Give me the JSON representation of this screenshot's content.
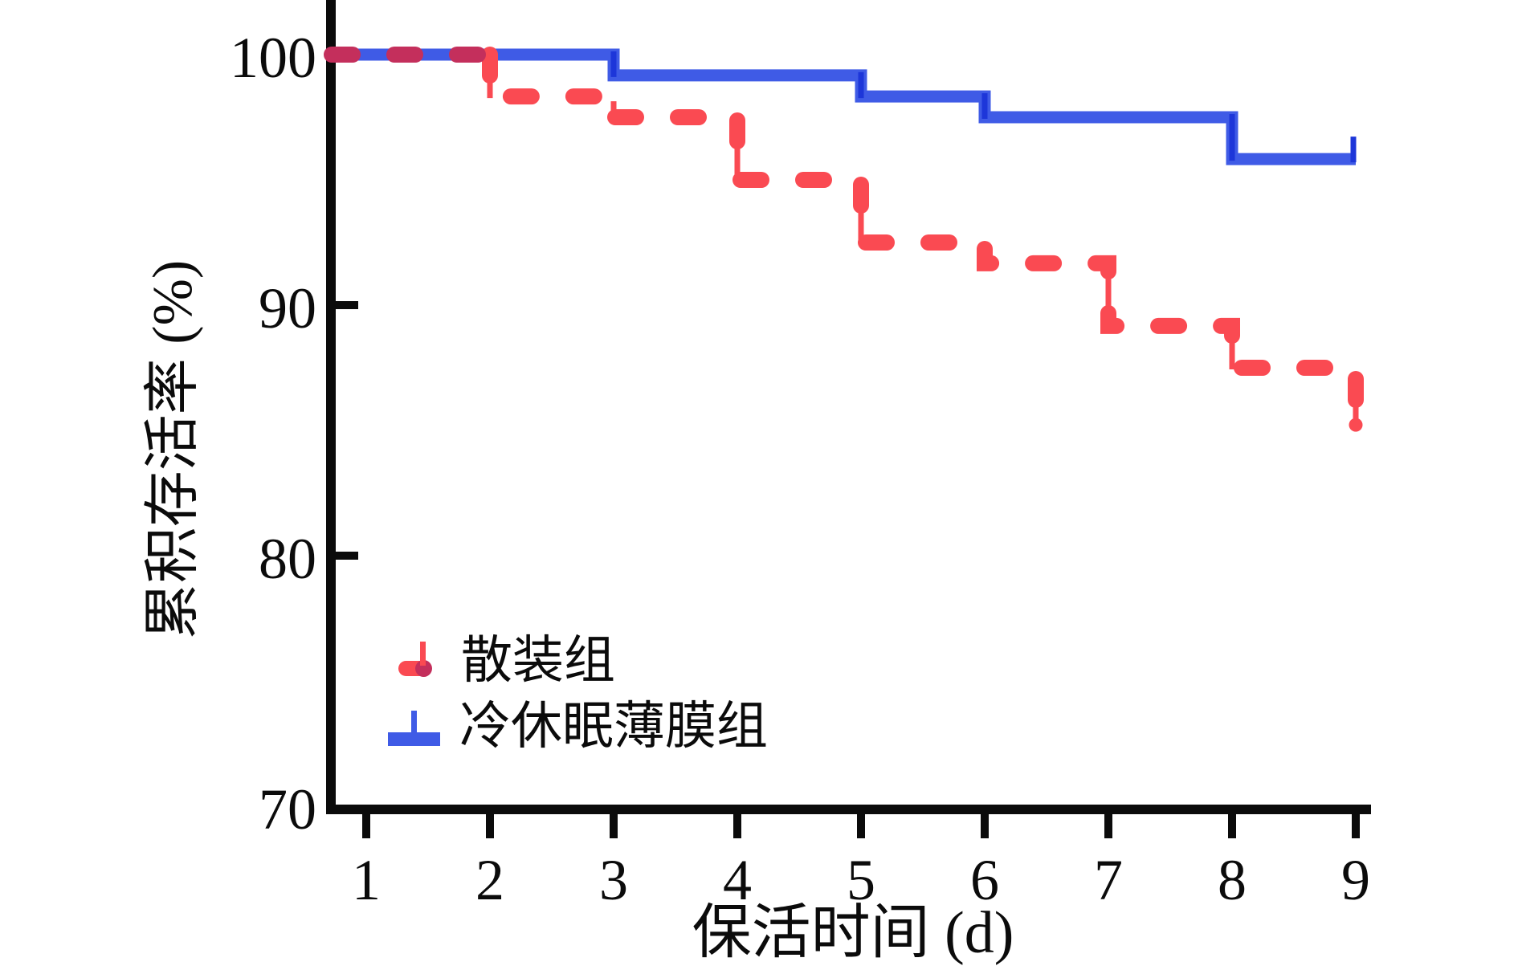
{
  "chart_data": {
    "type": "line",
    "subtype": "kaplan-meier-step",
    "title": "",
    "xlabel": "保活时间 (d)",
    "ylabel": "累积存活率 (%)",
    "xlim": [
      0.71,
      9.12
    ],
    "ylim": [
      70,
      102
    ],
    "x_ticks": [
      "1",
      "2",
      "3",
      "4",
      "5",
      "6",
      "7",
      "8",
      "9"
    ],
    "y_ticks": [
      "100",
      "90",
      "80",
      "70"
    ],
    "y_tick_values": [
      100,
      90,
      80,
      70
    ],
    "x_tick_values": [
      1,
      2,
      3,
      4,
      5,
      6,
      7,
      8,
      9
    ],
    "grid": false,
    "legend_position": "lower-left-inside",
    "series": [
      {
        "name": "散装组",
        "color": "#FA4A52",
        "overlap_color": "#C42F5C",
        "line_style": "dashed",
        "start_x": 0.71,
        "start_value": 100,
        "steps_day_value": [
          [
            2,
            98.33
          ],
          [
            3,
            97.5
          ],
          [
            4,
            95.0
          ],
          [
            5,
            92.5
          ],
          [
            6,
            91.67
          ],
          [
            7,
            89.17
          ],
          [
            8,
            87.5
          ],
          [
            9,
            85.83
          ]
        ],
        "end_x": 9,
        "error_ticks": "down-at-steps",
        "end_marker": "dot-below"
      },
      {
        "name": "冷休眠薄膜组",
        "color": "#3F5BE6",
        "tick_color": "#1D36D9",
        "line_style": "solid",
        "start_x": 0.71,
        "start_value": 100,
        "steps_day_value": [
          [
            3,
            99.17
          ],
          [
            5,
            98.33
          ],
          [
            6,
            97.5
          ],
          [
            8,
            95.83
          ]
        ],
        "end_x": 9,
        "error_ticks": "inside-steps",
        "end_marker": "tick-up"
      }
    ]
  },
  "legend": {
    "items": [
      {
        "label": "散装组",
        "color": "#FA4A52",
        "style": "dashed"
      },
      {
        "label": "冷休眠薄膜组",
        "color": "#3F5BE6",
        "style": "solid"
      }
    ]
  },
  "colors": {
    "red": "#FA4A52",
    "red_overlap": "#C42F5C",
    "blue": "#3F5BE6",
    "blue_dark": "#1D36D9",
    "axis": "#0b0b0b",
    "background": "#ffffff"
  }
}
